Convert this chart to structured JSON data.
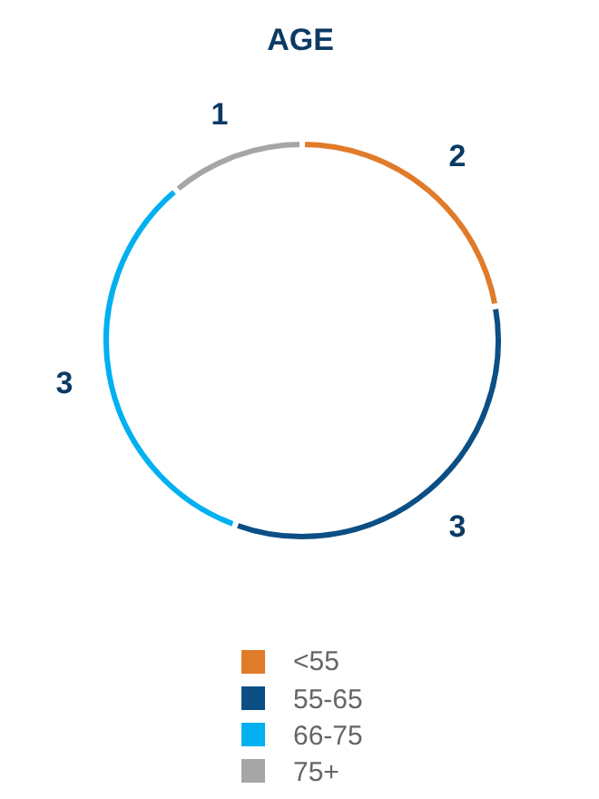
{
  "chart_data": {
    "type": "donut",
    "title": "AGE",
    "categories": [
      "<55",
      "55-65",
      "66-75",
      "75+"
    ],
    "values": [
      2,
      3,
      3,
      1
    ],
    "colors": [
      "#e07b2a",
      "#0b4f85",
      "#00b0f0",
      "#a6a6a6"
    ],
    "data_labels": true,
    "legend": "bottom"
  }
}
